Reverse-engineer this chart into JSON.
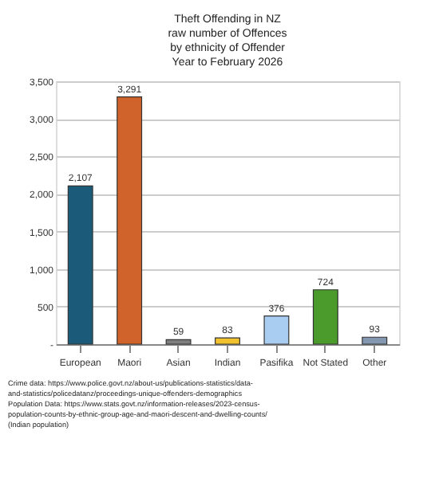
{
  "chart_data": {
    "type": "bar",
    "title": "Theft Offending in NZ",
    "subtitle": "raw number of Offences\nby ethnicity of Offender\nYear to February 2026",
    "categories": [
      "European",
      "Maori",
      "Asian",
      "Indian",
      "Pasifika",
      "Not Stated",
      "Other"
    ],
    "values": [
      2107,
      3291,
      59,
      83,
      376,
      724,
      93
    ],
    "value_labels": [
      "2,107",
      "3,291",
      "59",
      "83",
      "376",
      "724",
      "93"
    ],
    "colors": [
      "#1b5a78",
      "#d0632b",
      "#7f7f7f",
      "#f2c12e",
      "#a9cdf0",
      "#4a9a2c",
      "#8497b0"
    ],
    "ylim": [
      0,
      3500
    ],
    "yticks": [
      {
        "value": 0,
        "label": "-"
      },
      {
        "value": 500,
        "label": "500"
      },
      {
        "value": 1000,
        "label": "1,000"
      },
      {
        "value": 1500,
        "label": "1,500"
      },
      {
        "value": 2000,
        "label": "2,000"
      },
      {
        "value": 2500,
        "label": "2,500"
      },
      {
        "value": 3000,
        "label": "3,000"
      },
      {
        "value": 3500,
        "label": "3,500"
      }
    ],
    "grid": "y",
    "annotations": [
      "Crime data: https://www.police.govt.nz/about-us/publications-statistics/data-and-statistics/policedatanz/proceedings-unique-offenders-demographics",
      "Population Data: https://www.stats.govt.nz/information-releases/2023-census-population-counts-by-ethnic-group-age-and-maori-descent-and-dwelling-counts/ (Indian population)"
    ]
  }
}
